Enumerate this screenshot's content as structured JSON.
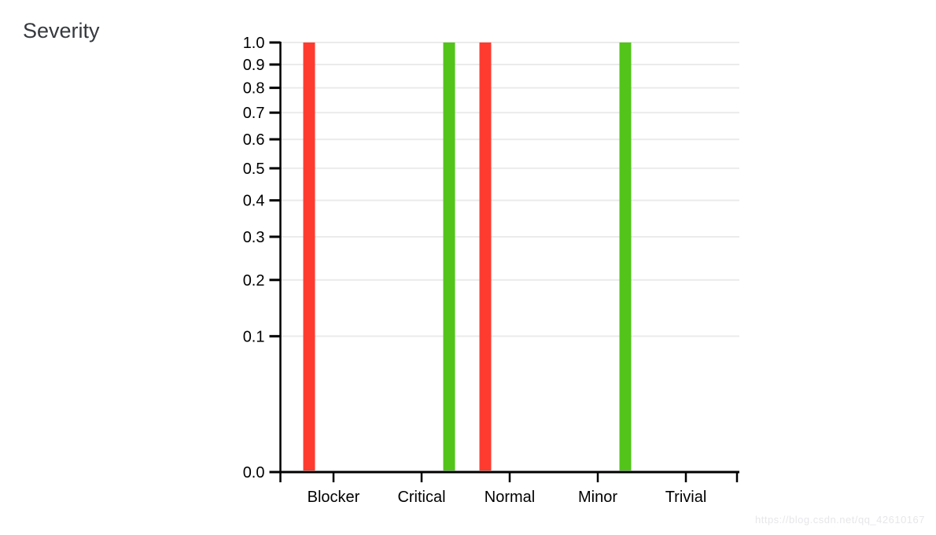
{
  "page": {
    "background": "#ffffff"
  },
  "chart_data": {
    "type": "bar",
    "title": "Severity",
    "xlabel": "",
    "ylabel": "",
    "categories": [
      "Blocker",
      "Critical",
      "Normal",
      "Minor",
      "Trivial"
    ],
    "series": [
      {
        "name": "red",
        "color": "#ff3b30",
        "values": [
          1,
          0,
          1,
          0,
          0
        ]
      },
      {
        "name": "green",
        "color": "#52c41a",
        "values": [
          0,
          1,
          0,
          1,
          0
        ]
      }
    ],
    "ylim": [
      0,
      1
    ],
    "y_scale": "sqrt",
    "y_ticks": [
      "1.0",
      "0.9",
      "0.8",
      "0.7",
      "0.6",
      "0.5",
      "0.4",
      "0.3",
      "0.2",
      "0.1",
      "0.0"
    ],
    "grid": true,
    "legend": "none",
    "axis_color": "#000000",
    "gridline_color": "#ebebeb",
    "title_color": "#36393e",
    "label_color": "#000000"
  },
  "watermark": {
    "text": "https://blog.csdn.net/qq_42610167"
  }
}
